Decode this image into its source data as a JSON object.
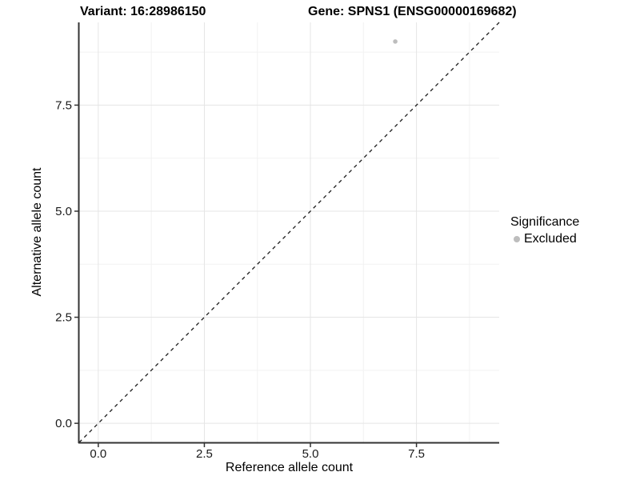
{
  "chart_data": {
    "type": "scatter",
    "title_left": "Variant: 16:28986150",
    "title_right": "Gene: SPNS1 (ENSG00000169682)",
    "xlabel": "Reference allele count",
    "ylabel": "Alternative allele count",
    "xlim": [
      -0.45,
      9.45
    ],
    "ylim": [
      -0.45,
      9.45
    ],
    "xticks": [
      0.0,
      2.5,
      5.0,
      7.5
    ],
    "yticks": [
      0.0,
      2.5,
      5.0,
      7.5
    ],
    "minor_ticks": [
      1.25,
      3.75,
      6.25,
      8.75
    ],
    "tick_decimals": 1,
    "grid": true,
    "points": [
      {
        "x": 7,
        "y": 9,
        "series": "Excluded"
      }
    ],
    "identity_line": {
      "slope": 1,
      "intercept": 0,
      "style": "dashed"
    },
    "legend": {
      "title": "Significance",
      "position": "right",
      "items": [
        {
          "label": "Excluded",
          "color": "#bdbdbd"
        }
      ]
    },
    "colors": {
      "point": "#bdbdbd",
      "grid_major": "#e5e5e5",
      "grid_minor": "#f2f2f2",
      "axis_line": "#333333",
      "tick_text": "#1a1a1a",
      "identity_line": "#1a1a1a"
    }
  }
}
